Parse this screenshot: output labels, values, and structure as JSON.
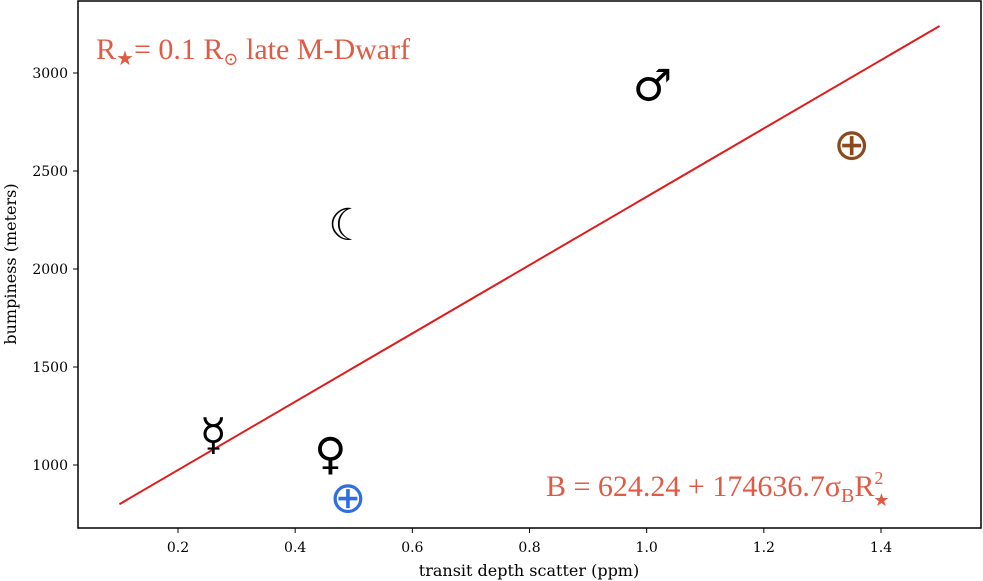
{
  "chart_data": {
    "type": "scatter",
    "title": "",
    "xlabel": "transit depth scatter (ppm)",
    "ylabel": "bumpiness (meters)",
    "xlim": [
      0.0,
      1.55
    ],
    "ylim": [
      700,
      3350
    ],
    "x_ticks": [
      0.2,
      0.4,
      0.6,
      0.8,
      1.0,
      1.2,
      1.4
    ],
    "x_tick_labels": [
      "0.2",
      "0.4",
      "0.6",
      "0.8",
      "1.0",
      "1.2",
      "1.4"
    ],
    "y_ticks": [
      1000,
      1500,
      2000,
      2500,
      3000
    ],
    "y_tick_labels": [
      "1000",
      "1500",
      "2000",
      "2500",
      "3000"
    ],
    "grid": false,
    "points": [
      {
        "body": "mercury",
        "glyph": "☿",
        "x": 0.26,
        "y": 1150,
        "color": "#000000"
      },
      {
        "body": "venus",
        "glyph": "♀",
        "x": 0.46,
        "y": 1050,
        "color": "#000000"
      },
      {
        "body": "earth",
        "glyph": "⊕",
        "x": 0.49,
        "y": 830,
        "color": "#2f6fe0"
      },
      {
        "body": "moon",
        "glyph": "☾",
        "x": 0.49,
        "y": 2220,
        "color": "#000000"
      },
      {
        "body": "mars",
        "glyph": "♂",
        "x": 1.01,
        "y": 2930,
        "color": "#000000"
      },
      {
        "body": "earth-brown",
        "glyph": "⊕",
        "x": 1.35,
        "y": 2630,
        "color": "#8b4a1c"
      }
    ],
    "fit_line": {
      "x": [
        0.1,
        1.5
      ],
      "y": [
        800,
        3240
      ],
      "color": "#dd1c1c"
    },
    "annotations": {
      "top_left": {
        "main": "R",
        "sub": "★",
        "rest": "= 0.1 R",
        "sub2": "⊙",
        "tail": " late M-Dwarf"
      },
      "bottom_right": {
        "main": "B = 624.24 + 174636.7σ",
        "sub": "B",
        "r": "R",
        "sup": "2",
        "sub2": "★"
      }
    },
    "annotation_color": "#e05a44"
  }
}
